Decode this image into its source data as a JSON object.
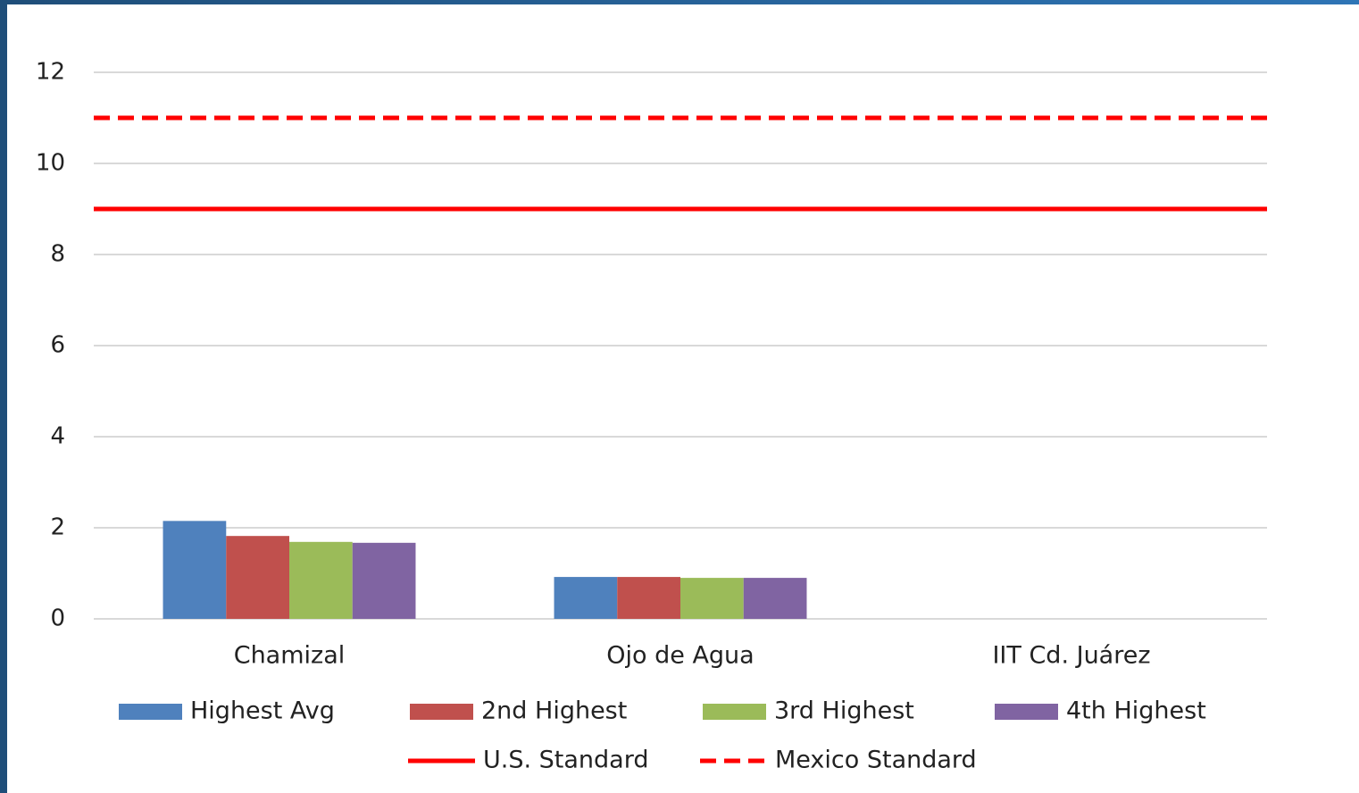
{
  "chart_data": {
    "type": "bar",
    "categories": [
      "Chamizal",
      "Ojo de Agua",
      "IIT Cd. Juárez"
    ],
    "series": [
      {
        "name": "Highest Avg",
        "color": "#4f81bd",
        "values": [
          2.15,
          0.92,
          null
        ]
      },
      {
        "name": "2nd Highest",
        "color": "#c0504d",
        "values": [
          1.82,
          0.92,
          null
        ]
      },
      {
        "name": "3rd Highest",
        "color": "#9bbb59",
        "values": [
          1.69,
          0.9,
          null
        ]
      },
      {
        "name": "4th Highest",
        "color": "#8064a2",
        "values": [
          1.67,
          0.9,
          null
        ]
      }
    ],
    "reference_lines": [
      {
        "name": "U.S. Standard",
        "color": "#ff0000",
        "value": 9,
        "style": "solid"
      },
      {
        "name": "Mexico Standard",
        "color": "#ff0000",
        "value": 11,
        "style": "dashed"
      }
    ],
    "ylim": [
      0,
      12
    ],
    "yticks": [
      0,
      2,
      4,
      6,
      8,
      10,
      12
    ],
    "grid": true,
    "legend": "bottom"
  }
}
